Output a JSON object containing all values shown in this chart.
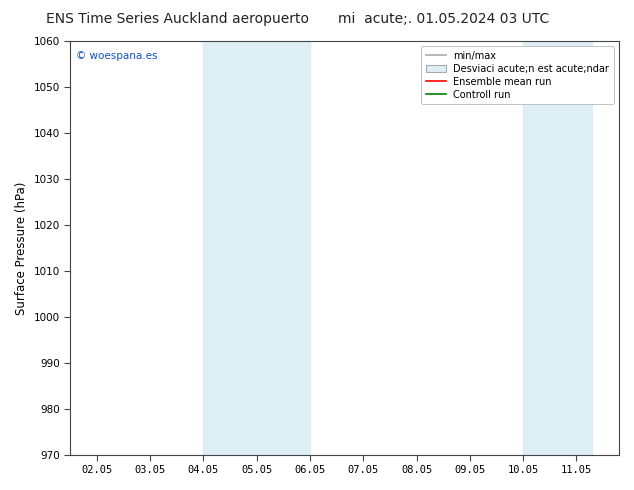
{
  "title_left": "ENS Time Series Auckland aeropuerto",
  "title_right": "mi  acute;. 01.05.2024 03 UTC",
  "ylabel": "Surface Pressure (hPa)",
  "watermark": "© woespana.es",
  "ylim": [
    970,
    1060
  ],
  "yticks": [
    970,
    980,
    990,
    1000,
    1010,
    1020,
    1030,
    1040,
    1050,
    1060
  ],
  "x_labels": [
    "02.05",
    "03.05",
    "04.05",
    "05.05",
    "06.05",
    "07.05",
    "08.05",
    "09.05",
    "10.05",
    "11.05"
  ],
  "x_positions": [
    0,
    1,
    2,
    3,
    4,
    5,
    6,
    7,
    8,
    9
  ],
  "xlim": [
    -0.5,
    9.8
  ],
  "shaded_regions": [
    {
      "xmin": 2,
      "xmax": 4,
      "color": "#ddeef5"
    },
    {
      "xmin": 8,
      "xmax": 9.3,
      "color": "#ddeef5"
    }
  ],
  "legend_entries": [
    {
      "label": "min/max",
      "color": "#aaaaaa",
      "lw": 1.2,
      "style": "line"
    },
    {
      "label": "Desviaci acute;n est acute;ndar",
      "facecolor": "#ddeef5",
      "edgecolor": "#aaaaaa",
      "style": "patch"
    },
    {
      "label": "Ensemble mean run",
      "color": "red",
      "lw": 1.2,
      "style": "line"
    },
    {
      "label": "Controll run",
      "color": "green",
      "lw": 1.2,
      "style": "line"
    }
  ],
  "bg_color": "#ffffff",
  "plot_bg_color": "#ffffff",
  "border_color": "#444444",
  "title_fontsize": 10,
  "tick_fontsize": 7.5,
  "ylabel_fontsize": 8.5,
  "legend_fontsize": 7
}
